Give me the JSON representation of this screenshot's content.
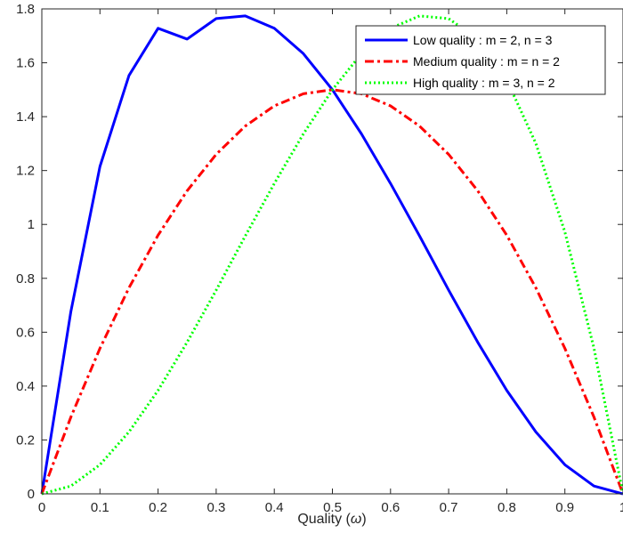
{
  "chart_data": {
    "type": "line",
    "xlabel_prefix": "Quality (",
    "xlabel_symbol": "ω",
    "xlabel_suffix": ")",
    "ylabel": "",
    "xlim": [
      0,
      1
    ],
    "ylim": [
      0,
      1.8
    ],
    "xticks": [
      "0",
      "0.1",
      "0.2",
      "0.3",
      "0.4",
      "0.5",
      "0.6",
      "0.7",
      "0.8",
      "0.9",
      "1"
    ],
    "yticks": [
      "0",
      "0.2",
      "0.4",
      "0.6",
      "0.8",
      "1",
      "1.2",
      "1.4",
      "1.6",
      "1.8"
    ],
    "grid": false,
    "legend_position": "top-right",
    "x": [
      0,
      0.05,
      0.1,
      0.15,
      0.2,
      0.25,
      0.3,
      0.35,
      0.4,
      0.45,
      0.5,
      0.55,
      0.6,
      0.65,
      0.7,
      0.75,
      0.8,
      0.85,
      0.9,
      0.95,
      1
    ],
    "series": [
      {
        "name": "Low quality : m = 2, n = 3",
        "color": "#0000ff",
        "style": "solid",
        "values": [
          0,
          0.677,
          1.215,
          1.553,
          1.728,
          1.688,
          1.764,
          1.774,
          1.728,
          1.634,
          1.5,
          1.336,
          1.152,
          0.957,
          0.756,
          0.563,
          0.384,
          0.23,
          0.108,
          0.029,
          0
        ]
      },
      {
        "name": "Medium quality : m = n = 2",
        "color": "#ff0000",
        "style": "dashdot",
        "values": [
          0,
          0.285,
          0.54,
          0.765,
          0.96,
          1.125,
          1.26,
          1.365,
          1.44,
          1.485,
          1.5,
          1.485,
          1.44,
          1.365,
          1.26,
          1.125,
          0.96,
          0.765,
          0.54,
          0.285,
          0
        ]
      },
      {
        "name": "High quality : m = 3, n = 2",
        "color": "#00ff00",
        "style": "dotted",
        "values": [
          0,
          0.029,
          0.108,
          0.23,
          0.384,
          0.563,
          0.756,
          0.957,
          1.152,
          1.336,
          1.5,
          1.634,
          1.728,
          1.774,
          1.764,
          1.688,
          1.536,
          1.301,
          0.972,
          0.541,
          0
        ]
      }
    ]
  }
}
